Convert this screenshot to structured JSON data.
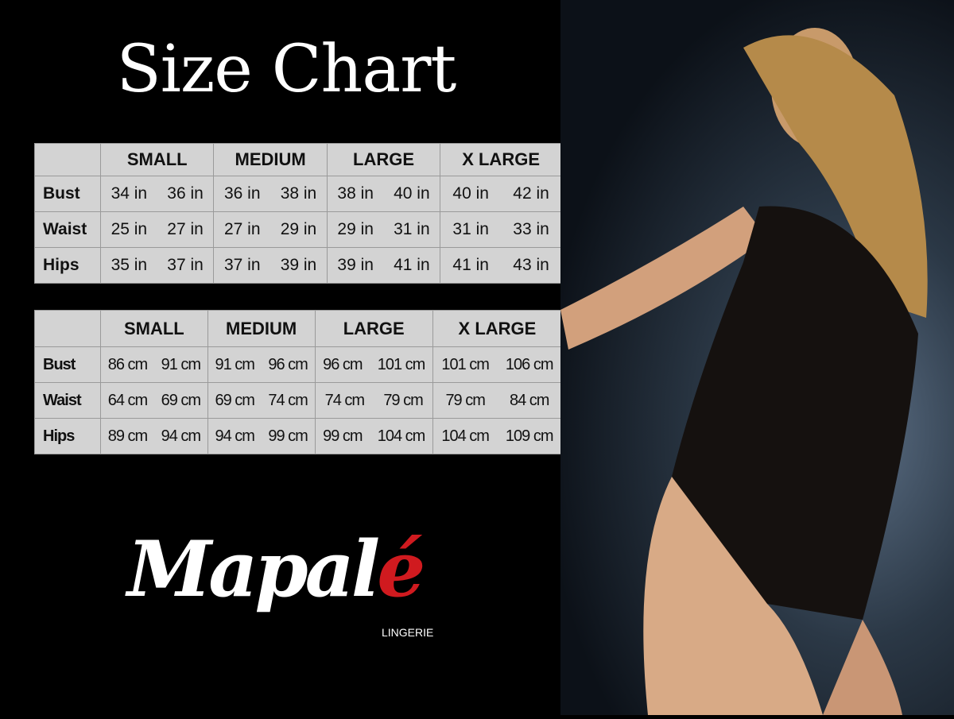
{
  "title": "Size Chart",
  "columns": [
    "SMALL",
    "MEDIUM",
    "LARGE",
    "X LARGE"
  ],
  "inches": [
    {
      "label": "Bust",
      "values": [
        "34 in",
        "36 in",
        "36 in",
        "38 in",
        "38 in",
        "40 in",
        "40 in",
        "42 in"
      ]
    },
    {
      "label": "Waist",
      "values": [
        "25 in",
        "27 in",
        "27 in",
        "29 in",
        "29 in",
        "31 in",
        "31 in",
        "33 in"
      ]
    },
    {
      "label": "Hips",
      "values": [
        "35 in",
        "37 in",
        "37 in",
        "39 in",
        "39 in",
        "41 in",
        "41 in",
        "43 in"
      ]
    }
  ],
  "cm": [
    {
      "label": "Bust",
      "values": [
        "86 cm",
        "91 cm",
        "91 cm",
        "96 cm",
        "96 cm",
        "101 cm",
        "101 cm",
        "106 cm"
      ]
    },
    {
      "label": "Waist",
      "values": [
        "64 cm",
        "69 cm",
        "69 cm",
        "74 cm",
        "74 cm",
        "79  cm",
        "79 cm",
        "84 cm"
      ]
    },
    {
      "label": "Hips",
      "values": [
        "89 cm",
        "94 cm",
        "94 cm",
        "99 cm",
        "99 cm",
        "104 cm",
        "104 cm",
        "109 cm"
      ]
    }
  ],
  "logo": {
    "main": "Mapal",
    "accent": "é",
    "sub": "LINGERIE",
    "accent_color": "#d01a1f"
  }
}
